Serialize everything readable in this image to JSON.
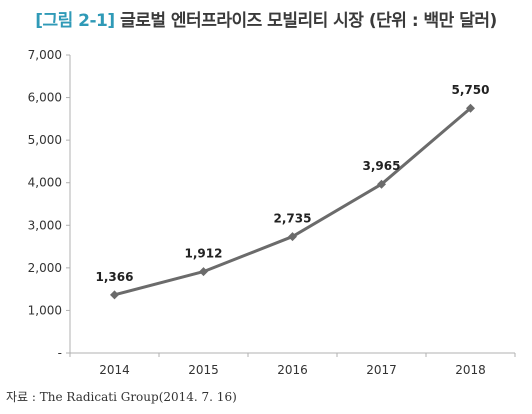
{
  "figure": {
    "label": "[그림 2-1]",
    "title": "글로벌 엔터프라이즈 모빌리티 시장 (단위 : 백만 달러)",
    "source": "자료 : The Radicati Group(2014. 7. 16)"
  },
  "colors": {
    "label_accent": "#2f9ab7",
    "line": "#6b6b6b",
    "axis": "#b0b0b0",
    "text": "#333333"
  },
  "chart_data": {
    "type": "line",
    "categories": [
      "2014",
      "2015",
      "2016",
      "2017",
      "2018"
    ],
    "series": [
      {
        "values": [
          1366,
          1912,
          2735,
          3965,
          5750
        ],
        "labels": [
          "1,366",
          "1,912",
          "2,735",
          "3,965",
          "5,750"
        ],
        "marker": "diamond"
      }
    ],
    "ylim": [
      0,
      7000
    ],
    "yticks": [
      0,
      1000,
      2000,
      3000,
      4000,
      5000,
      6000,
      7000
    ],
    "ytick_labels": [
      "-",
      "1,000",
      "2,000",
      "3,000",
      "4,000",
      "5,000",
      "6,000",
      "7,000"
    ],
    "grid": false,
    "legend": "none"
  }
}
